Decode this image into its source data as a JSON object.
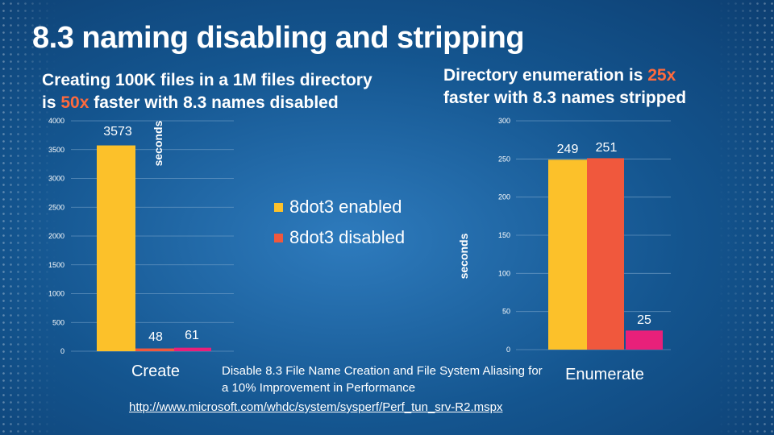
{
  "title": "8.3 naming disabling and stripping",
  "subtitle_left": {
    "line1": "Creating 100K files in a 1M files directory",
    "prefix": "is ",
    "highlight": "50x",
    "suffix": " faster with 8.3 names disabled"
  },
  "subtitle_right": {
    "prefix": "Directory enumeration is ",
    "highlight": "25x",
    "line2": "faster with 8.3 names stripped"
  },
  "legend": {
    "enabled": "8dot3 enabled",
    "disabled": "8dot3 disabled"
  },
  "footnote": {
    "text": "Disable 8.3 File Name Creation and File System Aliasing for a 10% Improvement in Performance",
    "link": "http://www.microsoft.com/whdc/system/sysperf/Perf_tun_srv-R2.mspx"
  },
  "colors": {
    "enabled": "#fcc12a",
    "disabled": "#f0583d",
    "third": "#e8207a",
    "grid": "#7ea7cc"
  },
  "chart_data": [
    {
      "type": "bar",
      "title": "Create",
      "categories": [
        "Create"
      ],
      "ylabel": "seconds",
      "ylim": [
        0,
        4000
      ],
      "yticks": [
        0,
        500,
        1000,
        1500,
        2000,
        2500,
        3000,
        3500,
        4000
      ],
      "series": [
        {
          "name": "8dot3 enabled",
          "values": [
            3573
          ],
          "label": "3573"
        },
        {
          "name": "8dot3 disabled",
          "values": [
            48
          ],
          "label": "48"
        },
        {
          "name": "",
          "values": [
            61
          ],
          "label": "61"
        }
      ]
    },
    {
      "type": "bar",
      "title": "Enumerate",
      "categories": [
        "Enumerate"
      ],
      "ylabel": "seconds",
      "ylim": [
        0,
        300
      ],
      "yticks": [
        0,
        50,
        100,
        150,
        200,
        250,
        300
      ],
      "series": [
        {
          "name": "8dot3 enabled",
          "values": [
            249
          ],
          "label": "249"
        },
        {
          "name": "8dot3 disabled",
          "values": [
            251
          ],
          "label": "251"
        },
        {
          "name": "",
          "values": [
            25
          ],
          "label": "25"
        }
      ]
    }
  ]
}
